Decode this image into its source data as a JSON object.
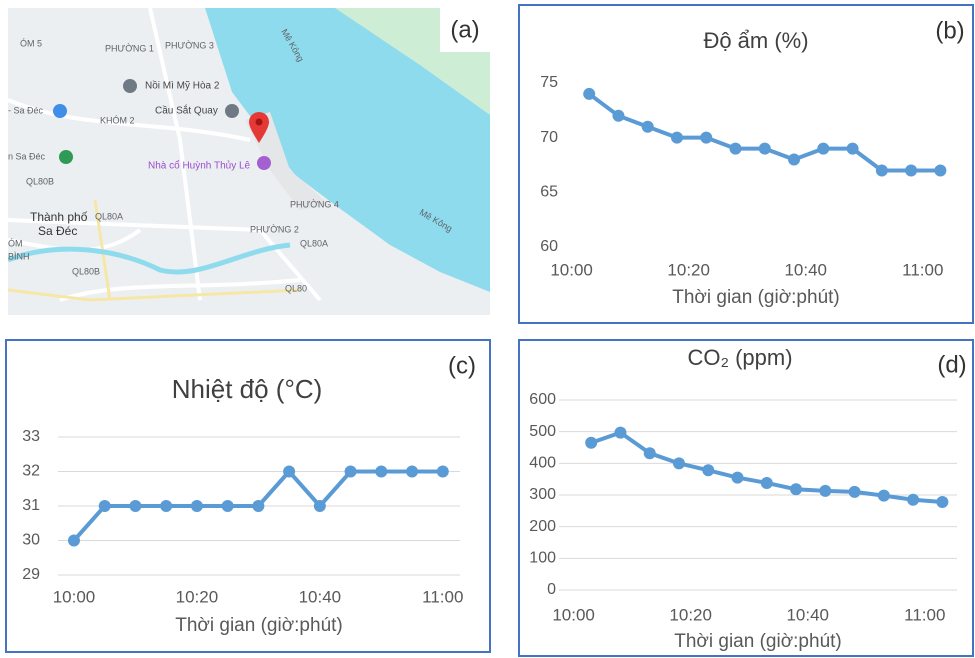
{
  "map": {
    "panel_label": "(a)",
    "labels": [
      "ÓM 5",
      "PHƯỜNG 1",
      "PHƯỜNG 3",
      "Mê Kông",
      "Nồi Mì Mỹ Hòa 2",
      "KHÓM 2",
      "Cầu Sắt Quay",
      "- Sa Đéc",
      "n Sa Đéc",
      "Nhà cổ Huỳnh Thủy Lê",
      "QL80B",
      "Thành phố",
      "Sa Đéc",
      "ÓM",
      "BÌNH",
      "QL80A",
      "PHƯỜNG 4",
      "PHƯỜNG 2",
      "QL80A",
      "QL80B",
      "QL80",
      "Mê Kông"
    ]
  },
  "chart_data": [
    {
      "type": "line",
      "panel_label": "(b)",
      "title": "Độ ẩm (%)",
      "x_label": "Thời gian (giờ:phút)",
      "x": [
        3,
        8,
        13,
        18,
        23,
        28,
        33,
        38,
        43,
        48,
        53,
        58,
        63
      ],
      "values": [
        74,
        72,
        71,
        70,
        70,
        69,
        69,
        68,
        69,
        69,
        67,
        67,
        67
      ],
      "color": "#5b9bd5",
      "xlim": [
        -2.5,
        65.5
      ],
      "xticks": [
        {
          "value": 0,
          "label": "10:00"
        },
        {
          "value": 20,
          "label": "10:20"
        },
        {
          "value": 40,
          "label": "10:40"
        },
        {
          "value": 60,
          "label": "11:00"
        }
      ],
      "ylim": [
        60,
        75
      ],
      "yticks": [
        60,
        65,
        70,
        75
      ],
      "grid": false
    },
    {
      "type": "line",
      "panel_label": "(c)",
      "title": "Nhiệt độ (°C)",
      "x_label": "Thời gian (giờ:phút)",
      "x": [
        0,
        5,
        10,
        15,
        20,
        25,
        30,
        35,
        40,
        45,
        50,
        55,
        60
      ],
      "values": [
        30,
        31,
        31,
        31,
        31,
        31,
        31,
        32,
        31,
        32,
        32,
        32,
        32
      ],
      "color": "#5b9bd5",
      "xlim": [
        -2.6,
        62.8
      ],
      "xticks": [
        {
          "value": 0,
          "label": "10:00"
        },
        {
          "value": 20,
          "label": "10:20"
        },
        {
          "value": 40,
          "label": "10:40"
        },
        {
          "value": 60,
          "label": "11:00"
        }
      ],
      "ylim": [
        29,
        33
      ],
      "yticks": [
        29,
        30,
        31,
        32,
        33
      ],
      "grid": true
    },
    {
      "type": "line",
      "panel_label": "(d)",
      "title": "CO₂ (ppm)",
      "x_label": "Thời gian (giờ:phút)",
      "x": [
        3,
        8,
        13,
        18,
        23,
        28,
        33,
        38,
        43,
        48,
        53,
        58,
        63
      ],
      "values": [
        465,
        497,
        432,
        400,
        378,
        355,
        338,
        318,
        313,
        310,
        298,
        285,
        278
      ],
      "color": "#5b9bd5",
      "xlim": [
        -2.5,
        65.5
      ],
      "xticks": [
        {
          "value": 0,
          "label": "10:00"
        },
        {
          "value": 20,
          "label": "10:20"
        },
        {
          "value": 40,
          "label": "10:40"
        },
        {
          "value": 60,
          "label": "11:00"
        }
      ],
      "ylim": [
        0,
        600
      ],
      "yticks": [
        0,
        100,
        200,
        300,
        400,
        500,
        600
      ],
      "grid": true
    }
  ]
}
